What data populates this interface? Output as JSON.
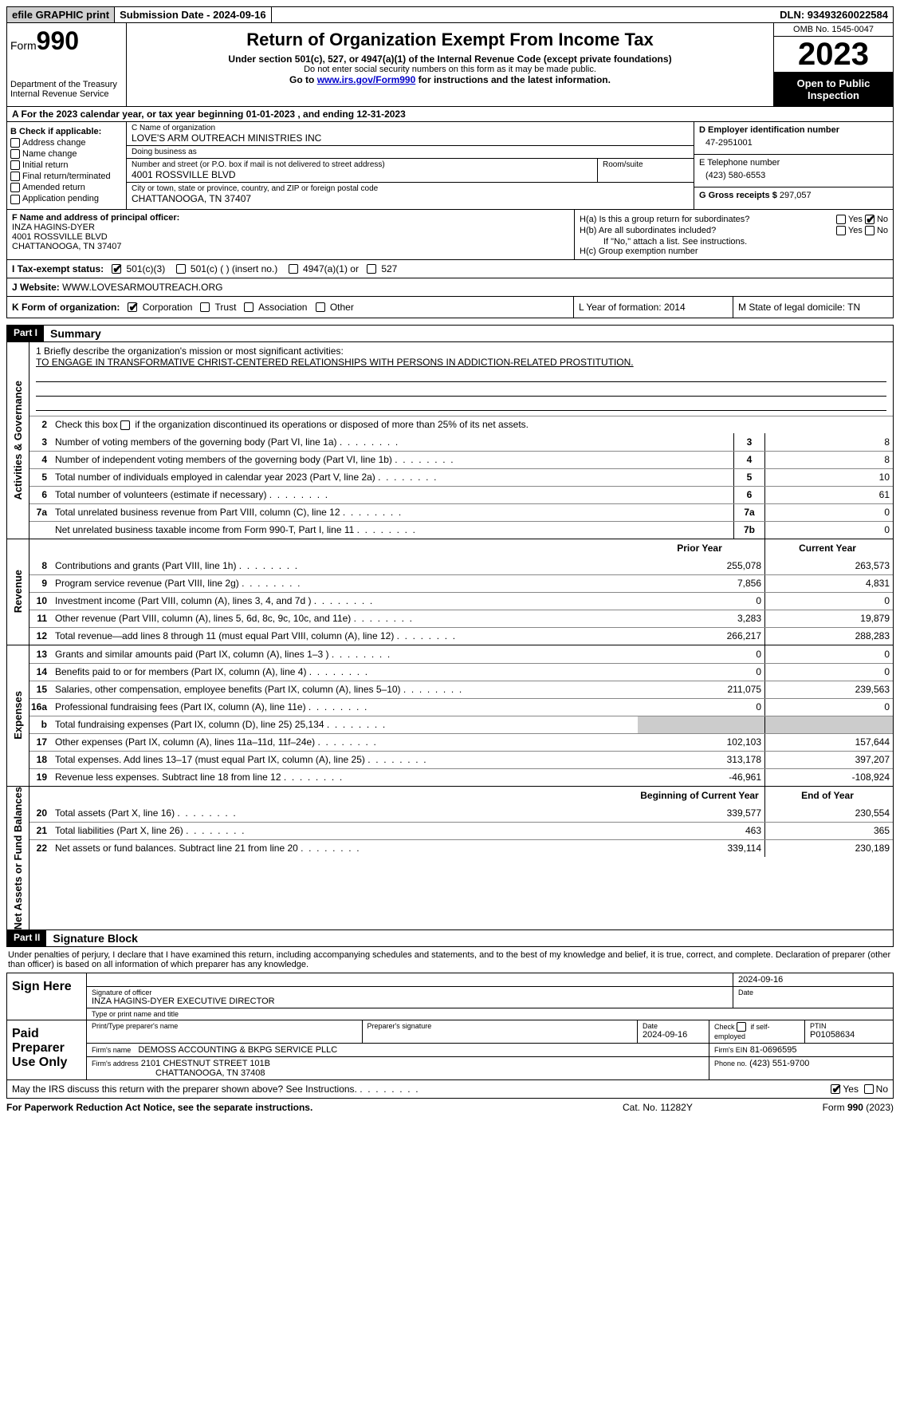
{
  "topbar": {
    "efile": "efile GRAPHIC print",
    "submission": "Submission Date - 2024-09-16",
    "dln": "DLN: 93493260022584"
  },
  "header": {
    "form_label": "Form",
    "form_no": "990",
    "dept": "Department of the Treasury\nInternal Revenue Service",
    "title": "Return of Organization Exempt From Income Tax",
    "sub1": "Under section 501(c), 527, or 4947(a)(1) of the Internal Revenue Code (except private foundations)",
    "sub2": "Do not enter social security numbers on this form as it may be made public.",
    "sub3_pre": "Go to ",
    "sub3_link": "www.irs.gov/Form990",
    "sub3_post": " for instructions and the latest information.",
    "omb": "OMB No. 1545-0047",
    "year": "2023",
    "open": "Open to Public Inspection"
  },
  "rowA": "A For the 2023 calendar year, or tax year beginning 01-01-2023   , and ending 12-31-2023",
  "colB": {
    "title": "B Check if applicable:",
    "items": [
      "Address change",
      "Name change",
      "Initial return",
      "Final return/terminated",
      "Amended return",
      "Application pending"
    ]
  },
  "colC": {
    "name_lbl": "C Name of organization",
    "name": "LOVE'S ARM OUTREACH MINISTRIES INC",
    "dba_lbl": "Doing business as",
    "dba": "",
    "addr_lbl": "Number and street (or P.O. box if mail is not delivered to street address)",
    "addr": "4001 ROSSVILLE BLVD",
    "room_lbl": "Room/suite",
    "city_lbl": "City or town, state or province, country, and ZIP or foreign postal code",
    "city": "CHATTANOOGA, TN  37407"
  },
  "colD": {
    "ein_lbl": "D Employer identification number",
    "ein": "47-2951001",
    "tel_lbl": "E Telephone number",
    "tel": "(423) 580-6553",
    "gross_lbl": "G Gross receipts $ ",
    "gross": "297,057"
  },
  "secF": {
    "lbl": "F  Name and address of principal officer:",
    "name": "INZA HAGINS-DYER",
    "addr1": "4001 ROSSVILLE BLVD",
    "addr2": "CHATTANOOGA, TN  37407"
  },
  "secH": {
    "ha": "H(a)  Is this a group return for subordinates?",
    "hb": "H(b)  Are all subordinates included?",
    "hb_note": "If \"No,\" attach a list. See instructions.",
    "hc": "H(c)  Group exemption number"
  },
  "rowI": {
    "lbl": "I    Tax-exempt status:",
    "opts": [
      "501(c)(3)",
      "501(c) (   ) (insert no.)",
      "4947(a)(1) or",
      "527"
    ]
  },
  "rowJ": {
    "lbl": "J   Website:",
    "val": " WWW.LOVESARMOUTREACH.ORG"
  },
  "rowK": {
    "lbl": "K Form of organization:",
    "opts": [
      "Corporation",
      "Trust",
      "Association",
      "Other"
    ],
    "L": "L Year of formation: 2014",
    "M": "M State of legal domicile: TN"
  },
  "part1": {
    "hdr": "Part I",
    "title": "Summary",
    "line1_lbl": "1   Briefly describe the organization's mission or most significant activities:",
    "line1_val": "TO ENGAGE IN TRANSFORMATIVE CHRIST-CENTERED RELATIONSHIPS WITH PERSONS IN ADDICTION-RELATED PROSTITUTION.",
    "line2": "Check this box        if the organization discontinued its operations or disposed of more than 25% of its net assets.",
    "side_gov": "Activities & Governance",
    "side_rev": "Revenue",
    "side_exp": "Expenses",
    "side_net": "Net Assets or Fund Balances",
    "gov": [
      {
        "n": "3",
        "t": "Number of voting members of the governing body (Part VI, line 1a)",
        "b": "3",
        "v": "8"
      },
      {
        "n": "4",
        "t": "Number of independent voting members of the governing body (Part VI, line 1b)",
        "b": "4",
        "v": "8"
      },
      {
        "n": "5",
        "t": "Total number of individuals employed in calendar year 2023 (Part V, line 2a)",
        "b": "5",
        "v": "10"
      },
      {
        "n": "6",
        "t": "Total number of volunteers (estimate if necessary)",
        "b": "6",
        "v": "61"
      },
      {
        "n": "7a",
        "t": "Total unrelated business revenue from Part VIII, column (C), line 12",
        "b": "7a",
        "v": "0"
      },
      {
        "n": "",
        "t": "Net unrelated business taxable income from Form 990-T, Part I, line 11",
        "b": "7b",
        "v": "0"
      }
    ],
    "col_prior": "Prior Year",
    "col_curr": "Current Year",
    "rev": [
      {
        "n": "8",
        "t": "Contributions and grants (Part VIII, line 1h)",
        "p": "255,078",
        "c": "263,573"
      },
      {
        "n": "9",
        "t": "Program service revenue (Part VIII, line 2g)",
        "p": "7,856",
        "c": "4,831"
      },
      {
        "n": "10",
        "t": "Investment income (Part VIII, column (A), lines 3, 4, and 7d )",
        "p": "0",
        "c": "0"
      },
      {
        "n": "11",
        "t": "Other revenue (Part VIII, column (A), lines 5, 6d, 8c, 9c, 10c, and 11e)",
        "p": "3,283",
        "c": "19,879"
      },
      {
        "n": "12",
        "t": "Total revenue—add lines 8 through 11 (must equal Part VIII, column (A), line 12)",
        "p": "266,217",
        "c": "288,283"
      }
    ],
    "exp": [
      {
        "n": "13",
        "t": "Grants and similar amounts paid (Part IX, column (A), lines 1–3 )",
        "p": "0",
        "c": "0"
      },
      {
        "n": "14",
        "t": "Benefits paid to or for members (Part IX, column (A), line 4)",
        "p": "0",
        "c": "0"
      },
      {
        "n": "15",
        "t": "Salaries, other compensation, employee benefits (Part IX, column (A), lines 5–10)",
        "p": "211,075",
        "c": "239,563"
      },
      {
        "n": "16a",
        "t": "Professional fundraising fees (Part IX, column (A), line 11e)",
        "p": "0",
        "c": "0"
      },
      {
        "n": "b",
        "t": "Total fundraising expenses (Part IX, column (D), line 25) 25,134",
        "p": "",
        "c": "",
        "shade": true
      },
      {
        "n": "17",
        "t": "Other expenses (Part IX, column (A), lines 11a–11d, 11f–24e)",
        "p": "102,103",
        "c": "157,644"
      },
      {
        "n": "18",
        "t": "Total expenses. Add lines 13–17 (must equal Part IX, column (A), line 25)",
        "p": "313,178",
        "c": "397,207"
      },
      {
        "n": "19",
        "t": "Revenue less expenses. Subtract line 18 from line 12",
        "p": "-46,961",
        "c": "-108,924"
      }
    ],
    "col_beg": "Beginning of Current Year",
    "col_end": "End of Year",
    "net": [
      {
        "n": "20",
        "t": "Total assets (Part X, line 16)",
        "p": "339,577",
        "c": "230,554"
      },
      {
        "n": "21",
        "t": "Total liabilities (Part X, line 26)",
        "p": "463",
        "c": "365"
      },
      {
        "n": "22",
        "t": "Net assets or fund balances. Subtract line 21 from line 20",
        "p": "339,114",
        "c": "230,189"
      }
    ]
  },
  "part2": {
    "hdr": "Part II",
    "title": "Signature Block",
    "intro": "Under penalties of perjury, I declare that I have examined this return, including accompanying schedules and statements, and to the best of my knowledge and belief, it is true, correct, and complete. Declaration of preparer (other than officer) is based on all information of which preparer has any knowledge.",
    "sign_here": "Sign Here",
    "sig_date": "2024-09-16",
    "sig_lbl": "Signature of officer",
    "sig_name": "INZA HAGINS-DYER  EXECUTIVE DIRECTOR",
    "sig_type_lbl": "Type or print name and title",
    "date_lbl": "Date",
    "paid": "Paid Preparer Use Only",
    "prep_name_lbl": "Print/Type preparer's name",
    "prep_sig_lbl": "Preparer's signature",
    "prep_date": "2024-09-16",
    "prep_check": "Check        if self-employed",
    "ptin_lbl": "PTIN",
    "ptin": "P01058634",
    "firm_name_lbl": "Firm's name",
    "firm_name": "DEMOSS ACCOUNTING & BKPG SERVICE PLLC",
    "firm_ein_lbl": "Firm's EIN",
    "firm_ein": "81-0696595",
    "firm_addr_lbl": "Firm's address",
    "firm_addr1": "2101 CHESTNUT STREET 101B",
    "firm_addr2": "CHATTANOOGA, TN  37408",
    "phone_lbl": "Phone no.",
    "phone": "(423) 551-9700",
    "may_irs": "May the IRS discuss this return with the preparer shown above? See Instructions."
  },
  "footer": {
    "pra": "For Paperwork Reduction Act Notice, see the separate instructions.",
    "cat": "Cat. No. 11282Y",
    "form": "Form 990 (2023)"
  },
  "yes": "Yes",
  "no": "No"
}
